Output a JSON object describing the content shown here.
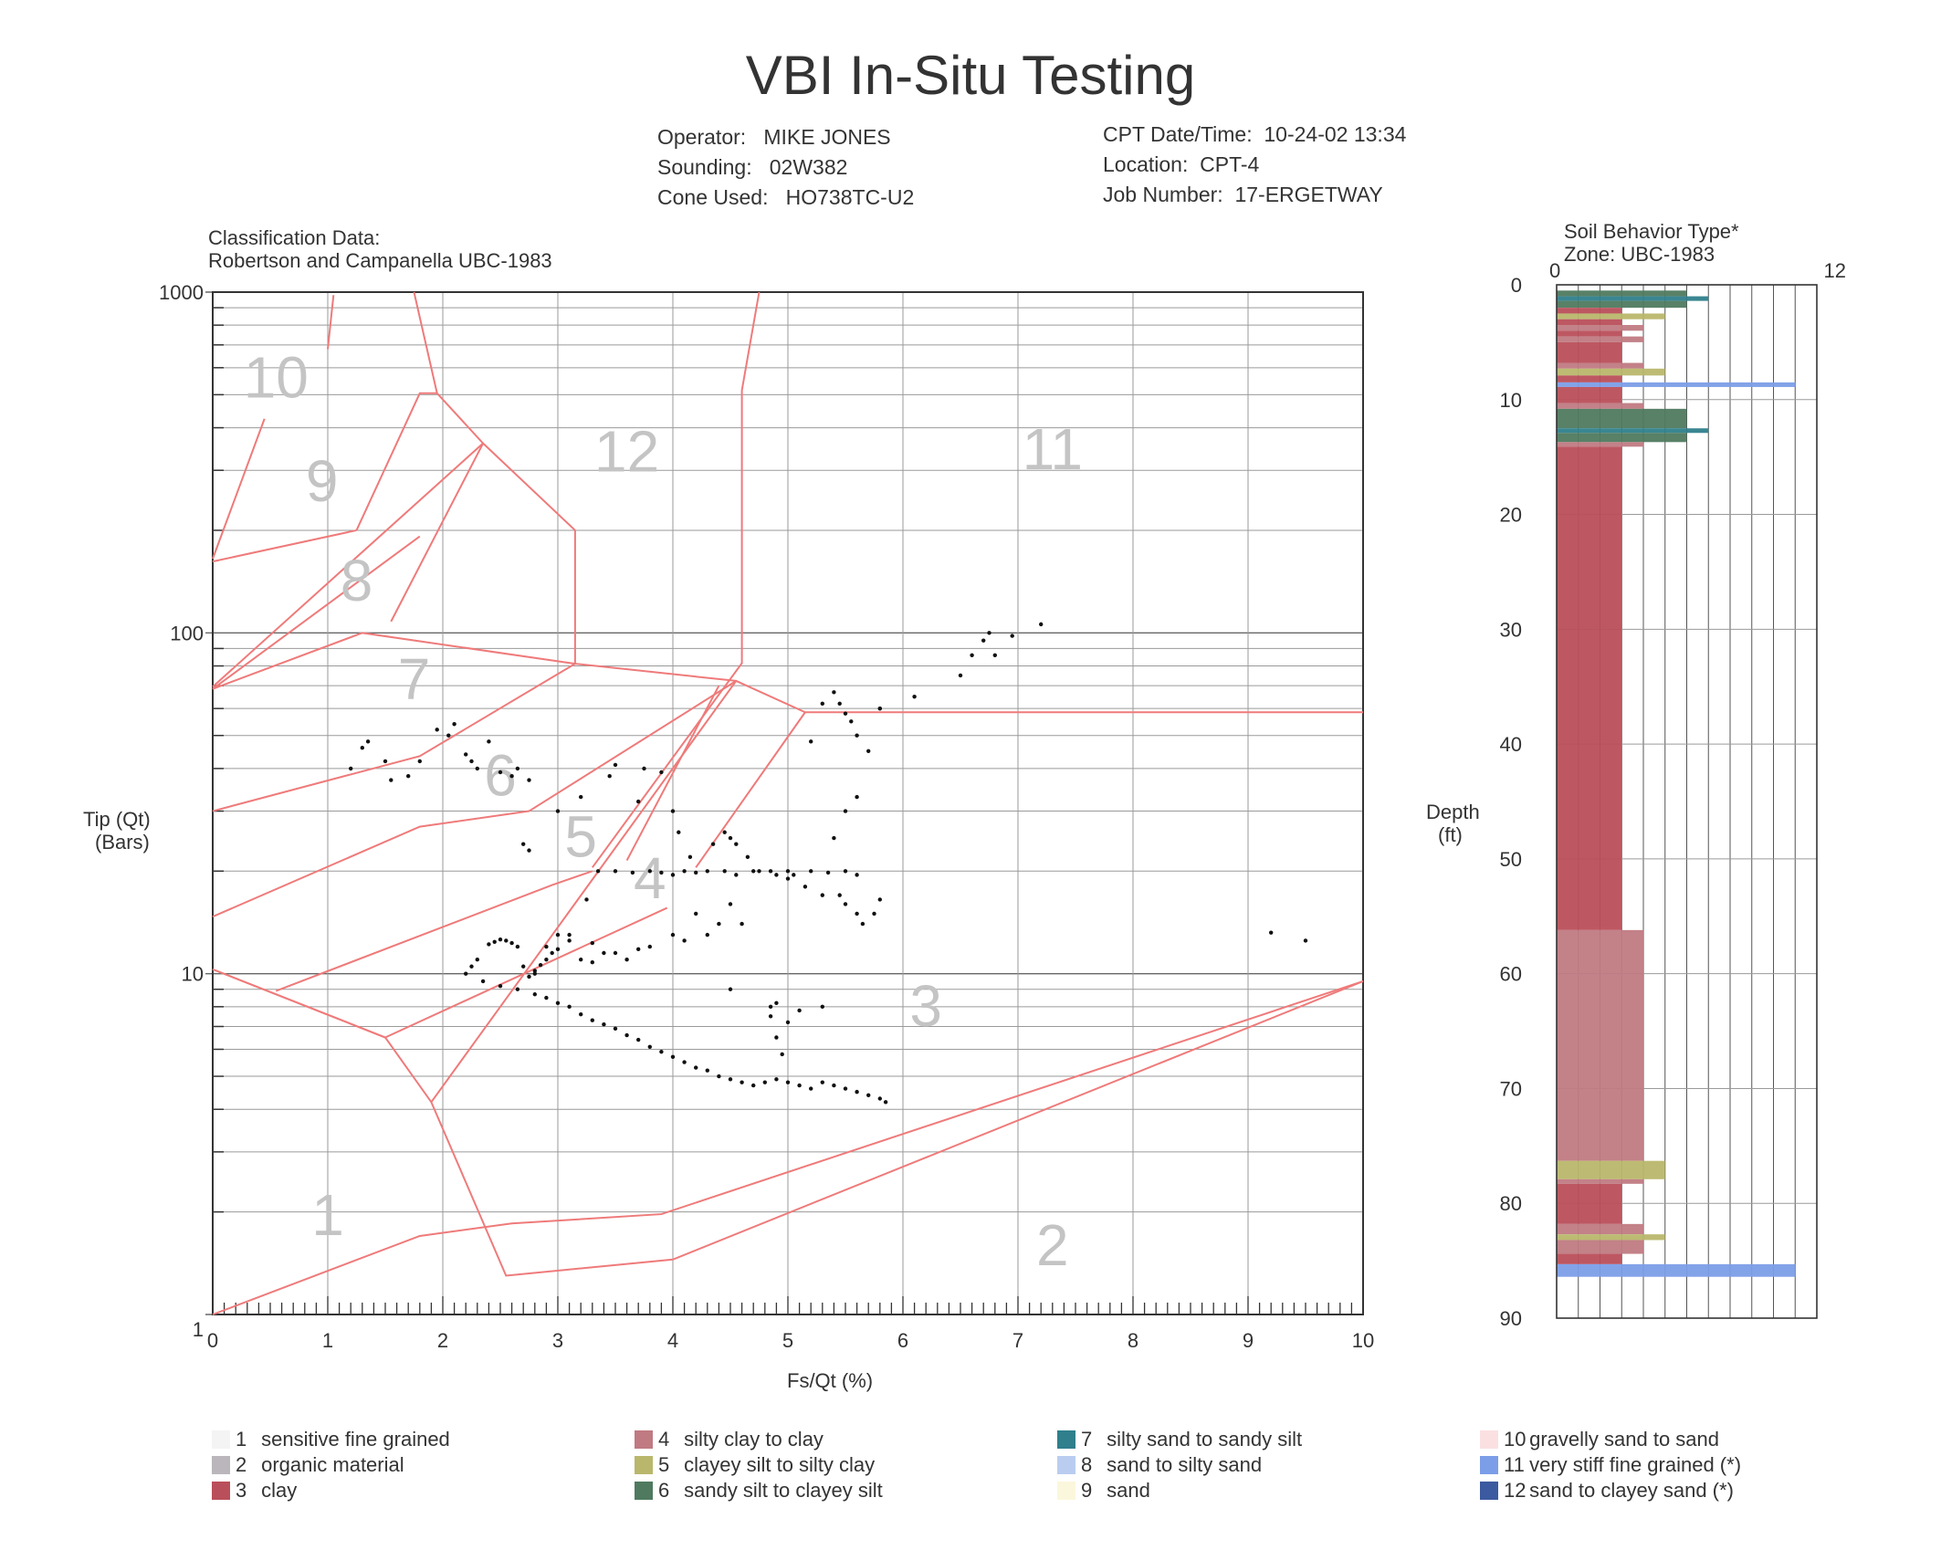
{
  "header": {
    "title": "VBI In-Situ Testing",
    "operator_label": "Operator:",
    "operator": "MIKE JONES",
    "sounding_label": "Sounding:",
    "sounding": "02W382",
    "cone_label": "Cone Used:",
    "cone": "HO738TC-U2",
    "datetime_label": "CPT Date/Time:",
    "datetime": "10-24-02 13:34",
    "location_label": "Location:",
    "location": "CPT-4",
    "job_label": "Job Number:",
    "job": "17-ERGETWAY"
  },
  "classification": {
    "line1": "Classification Data:",
    "line2": "Robertson and Campanella UBC-1983"
  },
  "sbt_header": {
    "line1": "Soil Behavior Type*",
    "line2": "Zone: UBC-1983"
  },
  "chart_data": [
    {
      "type": "scatter",
      "title": "",
      "xlabel": "Fs/Qt (%)",
      "ylabel": "Tip (Qt)\n(Bars)",
      "ylabel_line1": "Tip (Qt)",
      "ylabel_line2": "(Bars)",
      "xlim": [
        0,
        10
      ],
      "ylim": [
        1,
        1000
      ],
      "yscale": "log",
      "grid": true,
      "x_ticks": [
        "0",
        "1",
        "2",
        "3",
        "4",
        "5",
        "6",
        "7",
        "8",
        "9",
        "10"
      ],
      "y_ticks": [
        "1",
        "10",
        "100",
        "1000"
      ],
      "zone_labels": [
        {
          "text": "1",
          "x": 1.0,
          "y": 1.9
        },
        {
          "text": "2",
          "x": 7.3,
          "y": 1.55
        },
        {
          "text": "3",
          "x": 6.2,
          "y": 7.8
        },
        {
          "text": "4",
          "x": 3.8,
          "y": 18.5
        },
        {
          "text": "5",
          "x": 3.2,
          "y": 24.5
        },
        {
          "text": "6",
          "x": 2.5,
          "y": 37
        },
        {
          "text": "7",
          "x": 1.75,
          "y": 71
        },
        {
          "text": "8",
          "x": 1.25,
          "y": 138
        },
        {
          "text": "9",
          "x": 0.95,
          "y": 270
        },
        {
          "text": "10",
          "x": 0.55,
          "y": 545
        },
        {
          "text": "11",
          "x": 7.3,
          "y": 335
        },
        {
          "text": "12",
          "x": 3.6,
          "y": 330
        }
      ],
      "zone_boundaries": [
        [
          [
            0,
            1.0
          ],
          [
            1.8,
            1.7
          ],
          [
            2.6,
            1.85
          ],
          [
            3.9,
            1.97
          ],
          [
            10,
            9.5
          ]
        ],
        [
          [
            0,
            10.3
          ],
          [
            1.5,
            6.5
          ],
          [
            1.9,
            4.2
          ],
          [
            2.55,
            1.3
          ],
          [
            4,
            1.45
          ],
          [
            10,
            9.5
          ]
        ],
        [
          [
            0,
            10.3
          ],
          [
            1.5,
            6.5
          ]
        ],
        [
          [
            0.55,
            8.9
          ],
          [
            2.95,
            18.2
          ],
          [
            3.3,
            20
          ]
        ],
        [
          [
            1.5,
            6.5
          ],
          [
            3.95,
            15.6
          ]
        ],
        [
          [
            1.9,
            4.2
          ],
          [
            4.55,
            72.3
          ]
        ],
        [
          [
            0,
            14.7
          ],
          [
            1.8,
            27
          ],
          [
            2.75,
            30
          ],
          [
            4.55,
            72.3
          ],
          [
            5.15,
            58.5
          ],
          [
            10,
            58.5
          ]
        ],
        [
          [
            0,
            30
          ],
          [
            1.8,
            43.5
          ],
          [
            3.15,
            81.2
          ],
          [
            4.55,
            72.3
          ]
        ],
        [
          [
            0,
            68.5
          ],
          [
            1.3,
            100
          ],
          [
            3.15,
            81.2
          ]
        ],
        [
          [
            3.15,
            81.2
          ],
          [
            3.15,
            200
          ],
          [
            2.35,
            360
          ],
          [
            1.95,
            505
          ],
          [
            1.75,
            1000
          ]
        ],
        [
          [
            0,
            162
          ],
          [
            1.25,
            200
          ]
        ],
        [
          [
            1.25,
            200
          ],
          [
            1.8,
            505
          ],
          [
            1.95,
            505
          ]
        ],
        [
          [
            0,
            69.5
          ],
          [
            2.35,
            360
          ]
        ],
        [
          [
            3.3,
            20.5
          ],
          [
            4.6,
            81.5
          ],
          [
            4.6,
            515
          ],
          [
            4.75,
            1000
          ]
        ],
        [
          [
            3.6,
            21.5
          ],
          [
            4.4,
            70
          ]
        ],
        [
          [
            4.2,
            20.5
          ],
          [
            5.15,
            58.5
          ]
        ],
        [
          [
            1.0,
            680
          ],
          [
            1.05,
            980
          ]
        ],
        [
          [
            0.45,
            425
          ],
          [
            0,
            165
          ]
        ],
        [
          [
            0,
            68.5
          ],
          [
            1.8,
            192
          ]
        ],
        [
          [
            1.55,
            108
          ],
          [
            2.35,
            360
          ]
        ]
      ],
      "series": [
        {
          "x": [
            1.2,
            1.35,
            1.55,
            1.8,
            1.95,
            2.1,
            2.2,
            2.3,
            2.4,
            2.6,
            2.75,
            1.3,
            1.5,
            1.7,
            2.05,
            2.25,
            2.5,
            2.65,
            2.75,
            3.2,
            3.5,
            3.75,
            3.9,
            4.0,
            4.15,
            4.35,
            4.5,
            4.65,
            4.75,
            4.9,
            5.0,
            5.15,
            5.3,
            5.45,
            5.5,
            5.6,
            5.65,
            5.75,
            5.8,
            5.6,
            5.5,
            5.35,
            5.2,
            5.05,
            4.85,
            4.7,
            4.55,
            4.45,
            4.3,
            4.2,
            4.1,
            4.0,
            3.9,
            3.8,
            3.65,
            3.5,
            3.35,
            3.25,
            3.1,
            3.0,
            2.95,
            2.9,
            2.85,
            2.8,
            2.75,
            2.7,
            2.65,
            2.6,
            2.55,
            2.5,
            2.45,
            2.4,
            2.3,
            2.25,
            2.2,
            2.35,
            2.5,
            2.65,
            2.8,
            2.9,
            3.0,
            3.1,
            3.2,
            3.3,
            3.4,
            3.5,
            3.6,
            3.7,
            3.8,
            3.9,
            4.0,
            4.1,
            4.2,
            4.3,
            4.4,
            4.5,
            4.6,
            4.7,
            4.8,
            4.9,
            5.0,
            5.1,
            5.2,
            5.3,
            5.4,
            5.5,
            5.6,
            5.7,
            5.8,
            5.85,
            4.85,
            4.9,
            4.95,
            5.0,
            5.1,
            5.3,
            4.9,
            4.85,
            4.5,
            4.6,
            4.3,
            4.1,
            3.5,
            3.3,
            2.7,
            2.8,
            2.9,
            3.0,
            3.1,
            3.2,
            3.3,
            3.4,
            3.6,
            3.7,
            3.8,
            4.0,
            4.2,
            4.4,
            4.5,
            5.0,
            5.4,
            5.5,
            5.6,
            5.7,
            5.8,
            6.1,
            6.5,
            6.8,
            6.95,
            7.2,
            6.75,
            6.7,
            6.6,
            5.5,
            5.45,
            5.4,
            5.8,
            5.55,
            5.6,
            9.2,
            9.5,
            5.3,
            5.2,
            4.45,
            4.55,
            4.05,
            3.7,
            3.45,
            3.0
          ],
          "y": [
            40,
            48,
            37,
            42,
            52,
            54,
            44,
            40,
            48,
            38,
            37,
            46,
            42,
            38,
            50,
            42,
            39,
            40,
            23,
            33,
            41,
            40,
            39,
            30,
            22,
            24,
            25,
            22,
            20,
            19.5,
            19,
            18,
            17,
            17,
            16,
            15,
            14,
            15,
            16.5,
            19.5,
            20,
            19.8,
            20,
            19.5,
            20,
            20,
            19.5,
            20,
            20,
            19.8,
            20,
            19.5,
            19.8,
            20,
            19.8,
            20,
            20,
            16.5,
            13,
            11.8,
            11.5,
            11,
            10.6,
            10.2,
            9.8,
            10.5,
            12,
            12.3,
            12.5,
            12.6,
            12.4,
            12.2,
            11,
            10.5,
            10,
            9.5,
            9.2,
            9.0,
            8.7,
            8.5,
            8.2,
            8.0,
            7.6,
            7.3,
            7.1,
            6.9,
            6.6,
            6.4,
            6.1,
            5.9,
            5.7,
            5.5,
            5.3,
            5.2,
            5.0,
            4.9,
            4.8,
            4.7,
            4.8,
            4.9,
            4.8,
            4.7,
            4.6,
            4.8,
            4.7,
            4.6,
            4.5,
            4.4,
            4.3,
            4.2,
            7.5,
            6.5,
            5.8,
            7.2,
            7.8,
            8.0,
            8.2,
            8.0,
            9.0,
            14.0,
            13.0,
            12.5,
            11.5,
            12.3,
            24,
            10,
            12,
            13,
            12.5,
            11,
            10.8,
            11.5,
            11,
            11.8,
            12,
            13,
            15,
            14,
            16,
            20,
            25,
            30,
            33,
            45,
            60,
            65,
            75,
            86,
            98,
            106,
            100,
            95,
            86,
            58,
            62,
            67,
            60,
            55,
            50,
            13.2,
            12.5,
            62,
            48,
            26,
            24,
            26,
            32,
            38,
            30
          ]
        }
      ]
    },
    {
      "type": "bar",
      "title": "Soil Behavior Type*",
      "subtitle": "Zone: UBC-1983",
      "xlabel": "",
      "ylabel": "Depth\n(ft)",
      "ylabel_line1": "Depth",
      "ylabel_line2": "(ft)",
      "xlim": [
        0,
        12
      ],
      "ylim": [
        0,
        90
      ],
      "x_ticks": [
        "0",
        "12"
      ],
      "y_ticks": [
        "0",
        "10",
        "20",
        "30",
        "40",
        "50",
        "60",
        "70",
        "80",
        "90"
      ],
      "grid": true,
      "intervals": [
        {
          "d0": 0.5,
          "d1": 1.0,
          "zone": 6
        },
        {
          "d0": 1.0,
          "d1": 1.4,
          "zone": 7
        },
        {
          "d0": 1.4,
          "d1": 2.0,
          "zone": 6
        },
        {
          "d0": 2.0,
          "d1": 2.5,
          "zone": 3
        },
        {
          "d0": 2.5,
          "d1": 3.0,
          "zone": 5
        },
        {
          "d0": 3.0,
          "d1": 3.5,
          "zone": 3
        },
        {
          "d0": 3.5,
          "d1": 4.0,
          "zone": 4
        },
        {
          "d0": 4.0,
          "d1": 4.5,
          "zone": 3
        },
        {
          "d0": 4.5,
          "d1": 5.0,
          "zone": 4
        },
        {
          "d0": 5.0,
          "d1": 6.8,
          "zone": 3
        },
        {
          "d0": 6.8,
          "d1": 7.3,
          "zone": 4
        },
        {
          "d0": 7.3,
          "d1": 7.9,
          "zone": 5
        },
        {
          "d0": 7.9,
          "d1": 8.5,
          "zone": 3
        },
        {
          "d0": 8.5,
          "d1": 8.9,
          "zone": 11
        },
        {
          "d0": 8.9,
          "d1": 10.3,
          "zone": 3
        },
        {
          "d0": 10.3,
          "d1": 10.8,
          "zone": 4
        },
        {
          "d0": 10.8,
          "d1": 12.5,
          "zone": 6
        },
        {
          "d0": 12.5,
          "d1": 12.9,
          "zone": 7
        },
        {
          "d0": 12.9,
          "d1": 13.7,
          "zone": 6
        },
        {
          "d0": 13.7,
          "d1": 14.1,
          "zone": 4
        },
        {
          "d0": 14.1,
          "d1": 56.2,
          "zone": 3
        },
        {
          "d0": 56.2,
          "d1": 76.3,
          "zone": 4
        },
        {
          "d0": 76.3,
          "d1": 77.9,
          "zone": 5
        },
        {
          "d0": 77.9,
          "d1": 78.3,
          "zone": 4
        },
        {
          "d0": 78.3,
          "d1": 81.8,
          "zone": 3
        },
        {
          "d0": 81.8,
          "d1": 82.7,
          "zone": 4
        },
        {
          "d0": 82.7,
          "d1": 83.2,
          "zone": 5
        },
        {
          "d0": 83.2,
          "d1": 84.4,
          "zone": 4
        },
        {
          "d0": 84.4,
          "d1": 85.3,
          "zone": 3
        },
        {
          "d0": 85.3,
          "d1": 86.4,
          "zone": 11
        }
      ]
    }
  ],
  "zone_colors": {
    "1": "#f4f4f4",
    "2": "#bab6bb",
    "3": "#b94f5a",
    "4": "#c07a82",
    "5": "#b9b76c",
    "6": "#4f7a5f",
    "7": "#2f7f8c",
    "8": "#bacdf0",
    "9": "#fbf7dc",
    "10": "#fbe0e2",
    "11": "#7c9ee8",
    "12": "#3c5aa0"
  },
  "legend": [
    {
      "num": "1",
      "label": "sensitive fine grained",
      "color": "#f4f4f4"
    },
    {
      "num": "2",
      "label": "organic material",
      "color": "#bab6bb"
    },
    {
      "num": "3",
      "label": "clay",
      "color": "#b94f5a"
    },
    {
      "num": "4",
      "label": "silty clay to clay",
      "color": "#c07a82"
    },
    {
      "num": "5",
      "label": "clayey silt to silty clay",
      "color": "#b9b76c"
    },
    {
      "num": "6",
      "label": "sandy silt to clayey silt",
      "color": "#4f7a5f"
    },
    {
      "num": "7",
      "label": "silty sand to sandy silt",
      "color": "#2f7f8c"
    },
    {
      "num": "8",
      "label": "sand to silty sand",
      "color": "#bacdf0"
    },
    {
      "num": "9",
      "label": "sand",
      "color": "#fbf7dc"
    },
    {
      "num": "10",
      "label": "gravelly sand to sand",
      "color": "#fbe0e2"
    },
    {
      "num": "11",
      "label": "very stiff fine grained (*)",
      "color": "#7c9ee8"
    },
    {
      "num": "12",
      "label": "sand to clayey sand (*)",
      "color": "#3c5aa0"
    }
  ]
}
